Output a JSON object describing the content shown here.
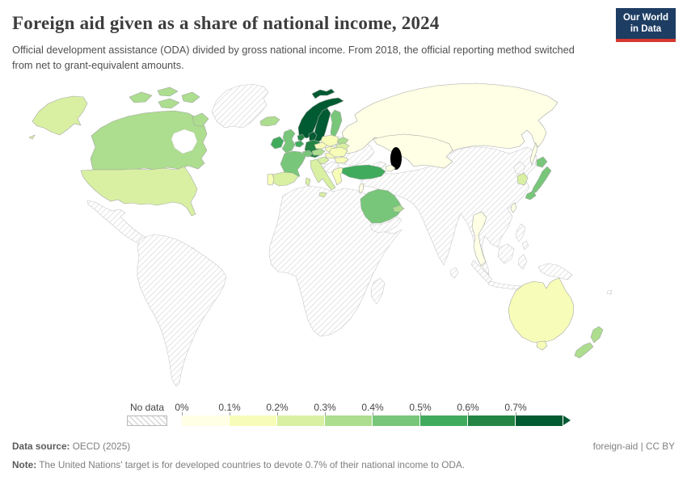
{
  "header": {
    "title": "Foreign aid given as a share of national income, 2024",
    "subtitle": "Official development assistance (ODA) divided by gross national income. From 2018, the official reporting method switched from net to grant-equivalent amounts.",
    "logo": {
      "line1": "Our World",
      "line2": "in Data",
      "bg": "#1d3d63",
      "accent": "#d7382e"
    }
  },
  "legend": {
    "no_data_label": "No data",
    "ticks": [
      "0%",
      "0.1%",
      "0.2%",
      "0.3%",
      "0.4%",
      "0.5%",
      "0.6%",
      "0.7%"
    ]
  },
  "footer": {
    "source_label": "Data source:",
    "source_value": " OECD (2025)",
    "license": "foreign-aid | CC BY",
    "note_label": "Note:",
    "note_value": " The United Nations' target is for developed countries to devote 0.7% of their national income to ODA."
  },
  "chart_data": {
    "type": "choropleth_map",
    "title": "Foreign aid given as a share of national income, 2024",
    "unit": "ODA as % of GNI",
    "legend_position": "bottom",
    "buckets": [
      "0%–0.1%",
      "0.1%–0.2%",
      "0.2%–0.3%",
      "0.3%–0.4%",
      "0.4%–0.5%",
      "0.5%–0.6%",
      "0.6%–0.7%",
      "0.7%+"
    ],
    "bucket_colors": [
      "#ffffe5",
      "#f7fcb9",
      "#d9f0a3",
      "#addd8e",
      "#78c679",
      "#41ab5d",
      "#238443",
      "#005a32"
    ],
    "countries": [
      {
        "name": "Norway",
        "bucket": 7
      },
      {
        "name": "Sweden",
        "bucket": 7
      },
      {
        "name": "Denmark",
        "bucket": 7
      },
      {
        "name": "Germany",
        "bucket": 6
      },
      {
        "name": "Netherlands",
        "bucket": 6
      },
      {
        "name": "Ireland",
        "bucket": 5
      },
      {
        "name": "Belgium",
        "bucket": 5
      },
      {
        "name": "Turkey",
        "bucket": 5
      },
      {
        "name": "United Kingdom",
        "bucket": 4
      },
      {
        "name": "France",
        "bucket": 4
      },
      {
        "name": "Switzerland",
        "bucket": 4
      },
      {
        "name": "Finland",
        "bucket": 4
      },
      {
        "name": "Saudi Arabia",
        "bucket": 4
      },
      {
        "name": "Japan",
        "bucket": 4
      },
      {
        "name": "Canada",
        "bucket": 3
      },
      {
        "name": "Iceland",
        "bucket": 3
      },
      {
        "name": "Austria",
        "bucket": 3
      },
      {
        "name": "Estonia",
        "bucket": 3
      },
      {
        "name": "United Arab Emirates",
        "bucket": 3
      },
      {
        "name": "New Zealand",
        "bucket": 3
      },
      {
        "name": "United States",
        "bucket": 2
      },
      {
        "name": "South Korea",
        "bucket": 2
      },
      {
        "name": "Spain",
        "bucket": 2
      },
      {
        "name": "Italy",
        "bucket": 2
      },
      {
        "name": "Latvia",
        "bucket": 2
      },
      {
        "name": "Lithuania",
        "bucket": 2
      },
      {
        "name": "Croatia",
        "bucket": 2
      },
      {
        "name": "Australia",
        "bucket": 1
      },
      {
        "name": "Poland",
        "bucket": 1
      },
      {
        "name": "Czechia",
        "bucket": 1
      },
      {
        "name": "Slovakia",
        "bucket": 1
      },
      {
        "name": "Hungary",
        "bucket": 1
      },
      {
        "name": "Romania",
        "bucket": 1
      },
      {
        "name": "Bulgaria",
        "bucket": 1
      },
      {
        "name": "Greece",
        "bucket": 1
      },
      {
        "name": "Portugal",
        "bucket": 1
      },
      {
        "name": "Russia",
        "bucket": 0
      },
      {
        "name": "Kazakhstan",
        "bucket": 0
      },
      {
        "name": "Azerbaijan",
        "bucket": 0
      },
      {
        "name": "Thailand",
        "bucket": 0
      },
      {
        "name": "Taiwan",
        "bucket": 0
      },
      {
        "name": "Israel",
        "bucket": 0
      },
      {
        "name": "Kuwait",
        "bucket": 0
      }
    ],
    "no_data_regions": [
      "Greenland",
      "Mexico & Central America",
      "Caribbean",
      "South America",
      "Africa",
      "Madagascar",
      "Middle East (Iran, Iraq, Syria, Yemen, Oman)",
      "Ukraine & Belarus",
      "Western Balkans",
      "Caucasus",
      "Central Asia",
      "China",
      "Mongolia",
      "India",
      "Sri Lanka",
      "Southeast Asia (Myanmar, Vietnam, Malaysia)",
      "Indonesia",
      "Philippines",
      "Papua New Guinea",
      "North Korea"
    ]
  }
}
